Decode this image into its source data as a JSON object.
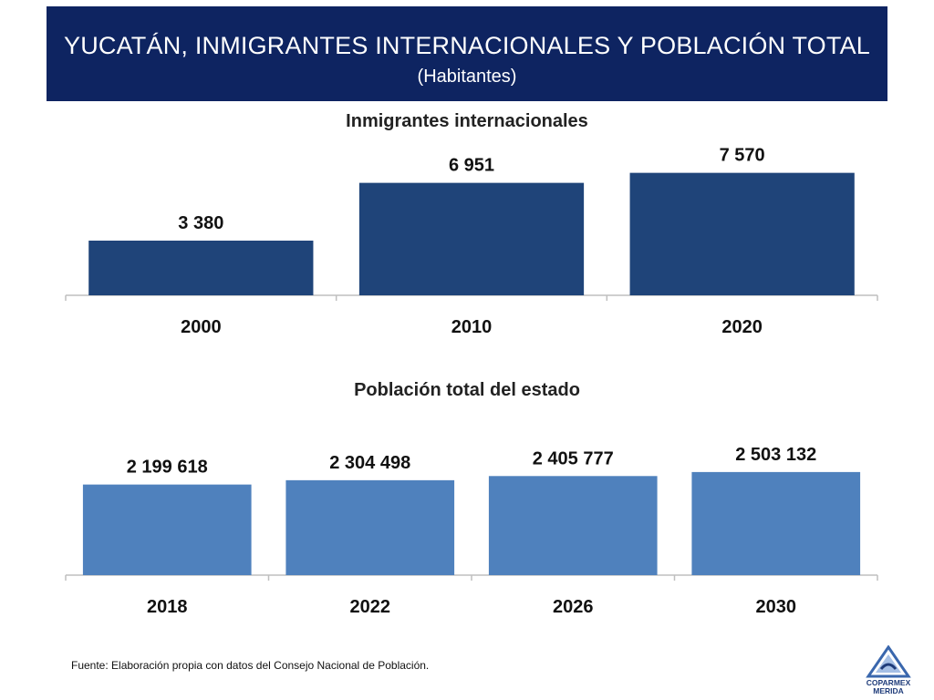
{
  "header": {
    "title": "YUCATÁN,  INMIGRANTES INTERNACIONALES Y POBLACIÓN TOTAL",
    "subtitle": "(Habitantes)"
  },
  "chart_data": [
    {
      "type": "bar",
      "title": "Inmigrantes internacionales",
      "categories": [
        "2000",
        "2010",
        "2020"
      ],
      "values": [
        3380,
        6951,
        7570
      ],
      "value_labels": [
        "3 380",
        "6 951",
        "7 570"
      ],
      "color": "#1f4479",
      "ylim": [
        0,
        8000
      ],
      "grid": false
    },
    {
      "type": "bar",
      "title": "Población total del estado",
      "categories": [
        "2018",
        "2022",
        "2026",
        "2030"
      ],
      "values": [
        2199618,
        2304498,
        2405777,
        2503132
      ],
      "value_labels": [
        "2 199 618",
        "2 304 498",
        "2 405 777",
        "2 503 132"
      ],
      "color": "#4f81bd",
      "ylim": [
        0,
        2700000
      ],
      "grid": false
    }
  ],
  "footer": {
    "source": "Fuente: Elaboración propia con datos del Consejo Nacional de Población.",
    "logo_text_1": "COPARMEX",
    "logo_text_2": "MERIDA"
  }
}
